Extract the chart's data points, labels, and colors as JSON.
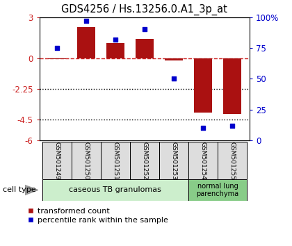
{
  "title": "GDS4256 / Hs.13256.0.A1_3p_at",
  "samples": [
    "GSM501249",
    "GSM501250",
    "GSM501251",
    "GSM501252",
    "GSM501253",
    "GSM501254",
    "GSM501255"
  ],
  "transformed_counts": [
    -0.05,
    2.3,
    1.1,
    1.4,
    -0.15,
    -4.0,
    -4.1
  ],
  "percentile_ranks": [
    75,
    97,
    82,
    90,
    50,
    10,
    12
  ],
  "ylim_left": [
    -6,
    3
  ],
  "ylim_right": [
    0,
    100
  ],
  "left_ticks": [
    3,
    0,
    -2.25,
    -4.5,
    -6
  ],
  "right_ticks": [
    100,
    75,
    50,
    25,
    0
  ],
  "right_tick_labels": [
    "100%",
    "75",
    "50",
    "25",
    "0"
  ],
  "hline_y": 0,
  "dotted_lines": [
    -2.25,
    -4.5
  ],
  "bar_color": "#aa1111",
  "dot_color": "#0000cc",
  "cell_type_label": "cell type",
  "grp1_label": "caseous TB granulomas",
  "grp1_color": "#cceecc",
  "grp2_label": "normal lung\nparenchyma",
  "grp2_color": "#88cc88",
  "legend_bar_label": "transformed count",
  "legend_dot_label": "percentile rank within the sample",
  "background_color": "#ffffff",
  "sample_box_color": "#dddddd",
  "tick_color_left": "#cc2222",
  "tick_color_right": "#0000cc"
}
